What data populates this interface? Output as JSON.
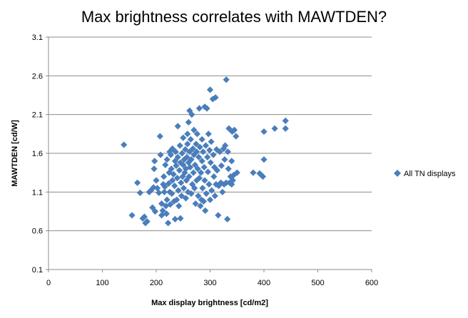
{
  "chart_data": {
    "type": "scatter",
    "title": "Max brightness correlates with MAWTDEN?",
    "xlabel": "Max display  brightness [cd/m2]",
    "ylabel": "MAWTDEN [cd/W]",
    "xlim": [
      0,
      600
    ],
    "ylim": [
      0.1,
      3.1
    ],
    "xticks": [
      0,
      100,
      200,
      300,
      400,
      500,
      600
    ],
    "xtick_labels": [
      "0",
      "100",
      "200",
      "300",
      "400",
      "500",
      "600"
    ],
    "yticks": [
      0.1,
      0.6,
      1.1,
      1.6,
      2.1,
      2.6,
      3.1
    ],
    "ytick_labels": [
      "0.1",
      "0.6",
      "1.1",
      "1.6",
      "2.1",
      "2.6",
      "3.1"
    ],
    "grid": "horizontal",
    "legend_position": "right",
    "marker": "diamond",
    "color": "#4a7ebb",
    "series": [
      {
        "name": "All TN displays",
        "points": [
          [
            140,
            1.71
          ],
          [
            155,
            0.8
          ],
          [
            165,
            1.22
          ],
          [
            170,
            1.09
          ],
          [
            175,
            0.76
          ],
          [
            178,
            0.78
          ],
          [
            180,
            0.7
          ],
          [
            183,
            0.72
          ],
          [
            187,
            1.1
          ],
          [
            190,
            1.12
          ],
          [
            193,
            0.9
          ],
          [
            195,
            1.16
          ],
          [
            196,
            1.4
          ],
          [
            197,
            1.5
          ],
          [
            198,
            0.85
          ],
          [
            200,
            1.25
          ],
          [
            202,
            1.15
          ],
          [
            205,
            1.09
          ],
          [
            207,
            1.82
          ],
          [
            208,
            1.58
          ],
          [
            210,
            0.95
          ],
          [
            210,
            0.8
          ],
          [
            212,
            0.86
          ],
          [
            213,
            1.2
          ],
          [
            214,
            1.3
          ],
          [
            215,
            1.1
          ],
          [
            216,
            1.17
          ],
          [
            217,
            1.45
          ],
          [
            218,
            0.92
          ],
          [
            219,
            0.82
          ],
          [
            220,
            1.52
          ],
          [
            220,
            1.0
          ],
          [
            222,
            0.7
          ],
          [
            223,
            1.21
          ],
          [
            224,
            1.35
          ],
          [
            225,
            1.62
          ],
          [
            225,
            1.1
          ],
          [
            226,
            0.94
          ],
          [
            227,
            1.58
          ],
          [
            228,
            1.4
          ],
          [
            229,
            1.08
          ],
          [
            230,
            1.66
          ],
          [
            230,
            1.25
          ],
          [
            232,
            1.33
          ],
          [
            233,
            0.98
          ],
          [
            234,
            1.18
          ],
          [
            235,
            1.5
          ],
          [
            235,
            0.75
          ],
          [
            236,
            1.62
          ],
          [
            237,
            1.44
          ],
          [
            238,
            1.0
          ],
          [
            239,
            1.28
          ],
          [
            240,
            1.55
          ],
          [
            240,
            1.95
          ],
          [
            241,
            1.12
          ],
          [
            242,
            0.92
          ],
          [
            243,
            1.38
          ],
          [
            244,
            1.7
          ],
          [
            245,
            1.48
          ],
          [
            245,
            0.76
          ],
          [
            246,
            1.22
          ],
          [
            247,
            1.05
          ],
          [
            248,
            1.6
          ],
          [
            249,
            1.3
          ],
          [
            250,
            1.45
          ],
          [
            250,
            1.8
          ],
          [
            251,
            1.15
          ],
          [
            252,
            1.52
          ],
          [
            253,
            1.35
          ],
          [
            254,
            1.65
          ],
          [
            255,
            1.02
          ],
          [
            255,
            1.4
          ],
          [
            256,
            1.25
          ],
          [
            257,
            1.55
          ],
          [
            258,
            1.85
          ],
          [
            258,
            1.72
          ],
          [
            259,
            1.1
          ],
          [
            260,
            1.48
          ],
          [
            260,
            2.0
          ],
          [
            261,
            1.3
          ],
          [
            262,
            1.62
          ],
          [
            262,
            2.15
          ],
          [
            263,
            1.42
          ],
          [
            264,
            1.78
          ],
          [
            265,
            1.08
          ],
          [
            265,
            1.52
          ],
          [
            266,
            2.1
          ],
          [
            267,
            1.2
          ],
          [
            268,
            1.66
          ],
          [
            269,
            1.35
          ],
          [
            270,
            1.58
          ],
          [
            270,
            1.9
          ],
          [
            271,
            1.15
          ],
          [
            272,
            1.45
          ],
          [
            273,
            0.95
          ],
          [
            274,
            1.72
          ],
          [
            275,
            1.25
          ],
          [
            275,
            1.62
          ],
          [
            276,
            1.85
          ],
          [
            277,
            1.4
          ],
          [
            278,
            1.05
          ],
          [
            279,
            1.55
          ],
          [
            280,
            2.18
          ],
          [
            280,
            1.28
          ],
          [
            281,
            1.68
          ],
          [
            282,
            0.92
          ],
          [
            283,
            1.35
          ],
          [
            284,
            1.0
          ],
          [
            285,
            1.5
          ],
          [
            285,
            1.78
          ],
          [
            286,
            1.15
          ],
          [
            287,
            1.62
          ],
          [
            288,
            0.98
          ],
          [
            289,
            1.42
          ],
          [
            290,
            2.2
          ],
          [
            290,
            1.25
          ],
          [
            291,
            0.86
          ],
          [
            292,
            1.7
          ],
          [
            293,
            1.08
          ],
          [
            294,
            2.18
          ],
          [
            295,
            1.55
          ],
          [
            296,
            1.36
          ],
          [
            297,
            1.85
          ],
          [
            298,
            1.2
          ],
          [
            299,
            1.64
          ],
          [
            300,
            2.42
          ],
          [
            300,
            1.0
          ],
          [
            301,
            1.48
          ],
          [
            302,
            1.75
          ],
          [
            303,
            1.12
          ],
          [
            305,
            2.3
          ],
          [
            306,
            1.58
          ],
          [
            307,
            1.3
          ],
          [
            308,
            1.42
          ],
          [
            309,
            1.05
          ],
          [
            310,
            2.32
          ],
          [
            311,
            1.2
          ],
          [
            312,
            1.65
          ],
          [
            313,
            1.38
          ],
          [
            315,
            0.8
          ],
          [
            316,
            1.18
          ],
          [
            318,
            1.62
          ],
          [
            320,
            1.22
          ],
          [
            321,
            1.44
          ],
          [
            323,
            1.1
          ],
          [
            325,
            1.66
          ],
          [
            326,
            1.2
          ],
          [
            327,
            1.52
          ],
          [
            328,
            1.7
          ],
          [
            330,
            1.22
          ],
          [
            330,
            2.55
          ],
          [
            332,
            0.75
          ],
          [
            333,
            1.62
          ],
          [
            334,
            1.4
          ],
          [
            335,
            1.92
          ],
          [
            336,
            1.22
          ],
          [
            338,
            1.3
          ],
          [
            340,
            1.5
          ],
          [
            340,
            1.2
          ],
          [
            341,
            1.88
          ],
          [
            342,
            1.25
          ],
          [
            344,
            1.32
          ],
          [
            345,
            1.9
          ],
          [
            348,
            1.82
          ],
          [
            350,
            1.35
          ],
          [
            380,
            1.35
          ],
          [
            392,
            1.34
          ],
          [
            395,
            1.32
          ],
          [
            398,
            1.3
          ],
          [
            400,
            1.88
          ],
          [
            400,
            1.52
          ],
          [
            420,
            1.92
          ],
          [
            440,
            2.02
          ],
          [
            440,
            1.92
          ]
        ]
      }
    ]
  }
}
